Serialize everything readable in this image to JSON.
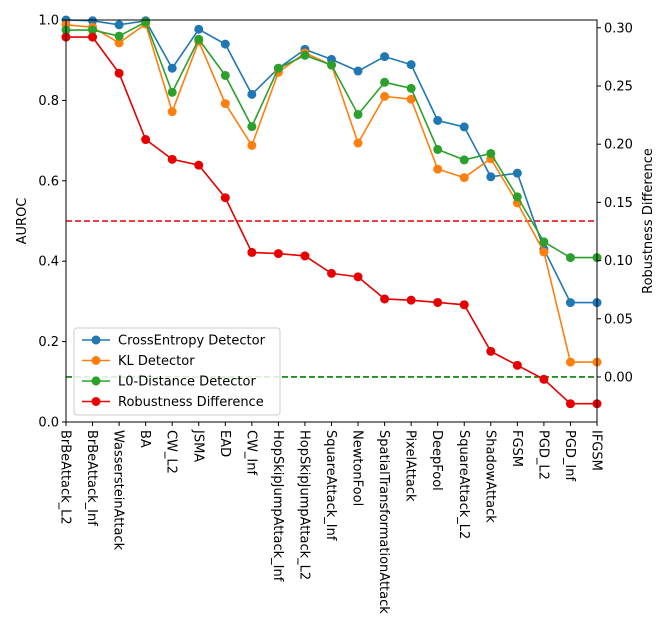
{
  "chart_data": {
    "type": "line",
    "categories": [
      "BrBeAttack_L2",
      "BrBeAttack_Inf",
      "WassersteinAttack",
      "BA",
      "CW_L2",
      "JSMA",
      "EAD",
      "CW_Inf",
      "HopSkipJumpAttack_Inf",
      "HopSkipJumpAttack_L2",
      "SquareAttack_Inf",
      "NewtonFool",
      "SpatialTransformationAttack",
      "PixelAttack",
      "DeepFool",
      "SquareAttack_L2",
      "ShadowAttack",
      "FGSM",
      "PGD_L2",
      "PGD_Inf",
      "IFGSM"
    ],
    "ylabel": "AUROC",
    "ylim": [
      0,
      1.0
    ],
    "yticks": [
      "0.0",
      "0.2",
      "0.4",
      "0.6",
      "0.8",
      "1.0"
    ],
    "y2label": "Robustness Difference",
    "y2lim": [
      -0.0387,
      0.3067
    ],
    "y2ticks": [
      "0.00",
      "0.05",
      "0.10",
      "0.15",
      "0.20",
      "0.25",
      "0.30"
    ],
    "series": [
      {
        "name": "CrossEntropy Detector",
        "axis": "left",
        "color": "#1f77b4",
        "values": [
          1.0,
          0.998,
          0.988,
          0.998,
          0.88,
          0.977,
          0.94,
          0.815,
          0.88,
          0.927,
          0.902,
          0.873,
          0.909,
          0.889,
          0.75,
          0.734,
          0.61,
          0.619,
          0.43,
          0.297,
          0.297
        ]
      },
      {
        "name": "KL Detector",
        "axis": "left",
        "color": "#ff7f0e",
        "values": [
          0.988,
          0.982,
          0.943,
          0.99,
          0.772,
          0.947,
          0.792,
          0.688,
          0.87,
          0.918,
          0.888,
          0.694,
          0.81,
          0.803,
          0.629,
          0.608,
          0.655,
          0.545,
          0.423,
          0.149,
          0.149
        ]
      },
      {
        "name": "L0-Distance Detector",
        "axis": "left",
        "color": "#2ca02c",
        "values": [
          0.975,
          0.975,
          0.96,
          0.995,
          0.82,
          0.952,
          0.862,
          0.735,
          0.88,
          0.912,
          0.888,
          0.765,
          0.845,
          0.83,
          0.678,
          0.652,
          0.668,
          0.56,
          0.448,
          0.409,
          0.409
        ]
      },
      {
        "name": "Robustness Difference",
        "axis": "right",
        "color": "#e60000",
        "values": [
          0.292,
          0.292,
          0.261,
          0.204,
          0.187,
          0.182,
          0.154,
          0.107,
          0.106,
          0.104,
          0.089,
          0.086,
          0.067,
          0.066,
          0.064,
          0.062,
          0.022,
          0.01,
          -0.002,
          -0.023,
          -0.023
        ]
      }
    ],
    "reference_lines": [
      {
        "axis": "left",
        "value": 0.5,
        "color": "#e60000",
        "style": "dashed"
      },
      {
        "axis": "right",
        "value": 0.0,
        "color": "#008000",
        "style": "dashed"
      }
    ],
    "legend_position": "lower-left",
    "grid": false
  }
}
